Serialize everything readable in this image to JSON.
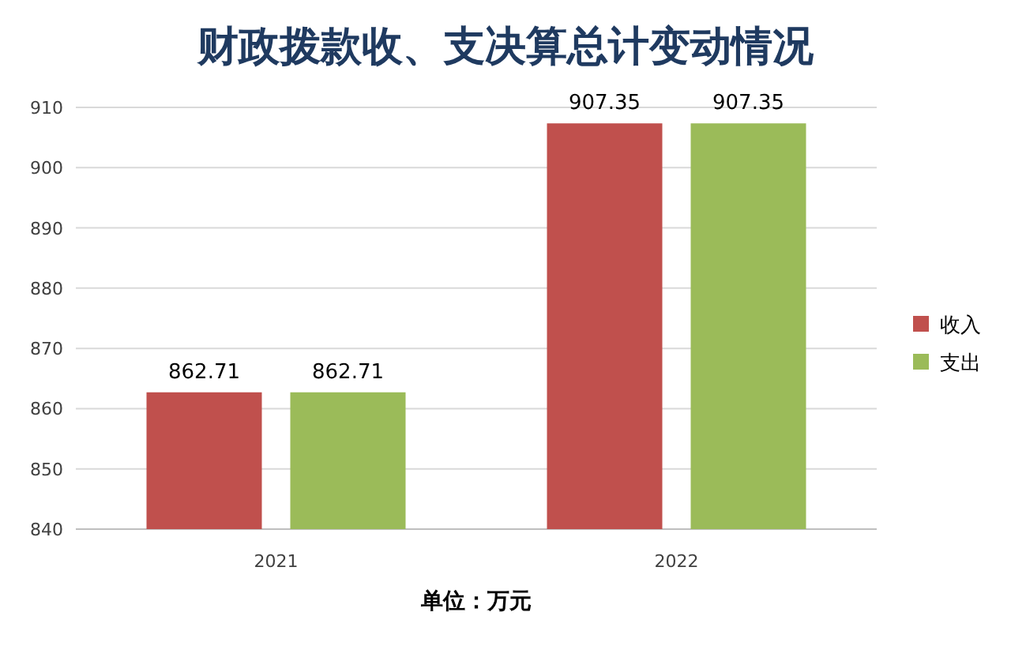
{
  "chart_data": {
    "type": "bar",
    "title": "财政拨款收、支决算总计变动情况",
    "xlabel": "单位：万元",
    "categories": [
      "2021",
      "2022"
    ],
    "series": [
      {
        "name": "收入",
        "color": "#c0504d",
        "values": [
          862.71,
          907.35
        ]
      },
      {
        "name": "支出",
        "color": "#9bbb59",
        "values": [
          862.71,
          907.35
        ]
      }
    ],
    "ylim": [
      840,
      910
    ],
    "yticks": [
      840,
      850,
      860,
      870,
      880,
      890,
      900,
      910
    ],
    "grid": "y",
    "legend": "right",
    "data_labels": true
  }
}
